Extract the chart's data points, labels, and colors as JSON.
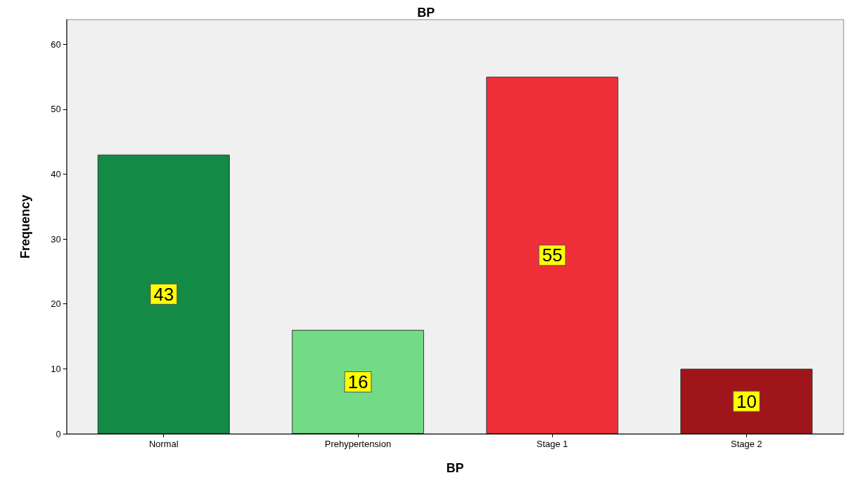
{
  "chart_data": {
    "type": "bar",
    "title": "BP",
    "xlabel": "BP",
    "ylabel": "Frequency",
    "categories": [
      "Normal",
      "Prehypertension",
      "Stage 1",
      "Stage 2"
    ],
    "values": [
      43,
      16,
      55,
      10
    ],
    "colors": [
      "#138a45",
      "#71db86",
      "#ef2f38",
      "#a0151a"
    ],
    "ylim": [
      0,
      63.8
    ],
    "yticks": [
      0,
      10,
      20,
      30,
      40,
      50,
      60
    ],
    "data_labels": true
  }
}
